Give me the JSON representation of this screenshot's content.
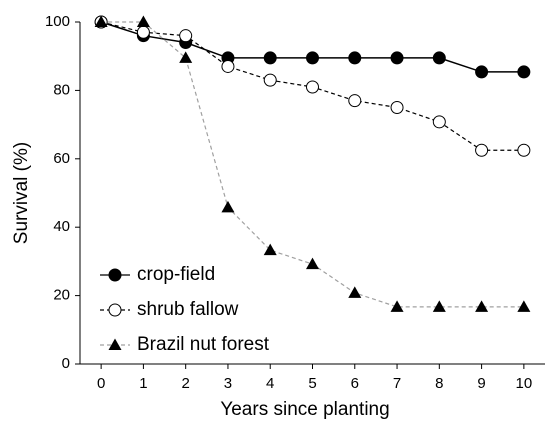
{
  "chart_data": {
    "type": "line",
    "xlabel": "Years since planting",
    "ylabel": "Survival (%)",
    "x": [
      0,
      1,
      2,
      3,
      4,
      5,
      6,
      7,
      8,
      9,
      10
    ],
    "xlim": [
      -0.5,
      10.5
    ],
    "xticks": [
      0,
      1,
      2,
      3,
      4,
      5,
      6,
      7,
      8,
      9,
      10
    ],
    "ylim": [
      0,
      100
    ],
    "yticks": [
      0,
      20,
      40,
      60,
      80,
      100
    ],
    "legend": "lower left",
    "series": [
      {
        "name": "crop-field",
        "color": "#000000",
        "line_color": "#000000",
        "marker": "circle-filled",
        "dash": "solid",
        "values": [
          100,
          96,
          94,
          89.5,
          89.5,
          89.5,
          89.5,
          89.5,
          89.5,
          85.4,
          85.4
        ]
      },
      {
        "name": "shrub fallow",
        "color": "#000000",
        "line_color": "#000000",
        "marker": "circle-open",
        "dash": "dashed",
        "values": [
          100,
          97,
          96,
          87,
          83,
          81,
          77,
          75,
          70.8,
          62.5,
          62.5
        ]
      },
      {
        "name": "Brazil nut forest",
        "color": "#000000",
        "line_color": "#a0a0a0",
        "marker": "triangle",
        "dash": "dashed",
        "values": [
          100,
          100,
          89.5,
          45.8,
          33.3,
          29.2,
          20.8,
          16.7,
          16.7,
          16.7,
          16.7
        ]
      }
    ]
  }
}
